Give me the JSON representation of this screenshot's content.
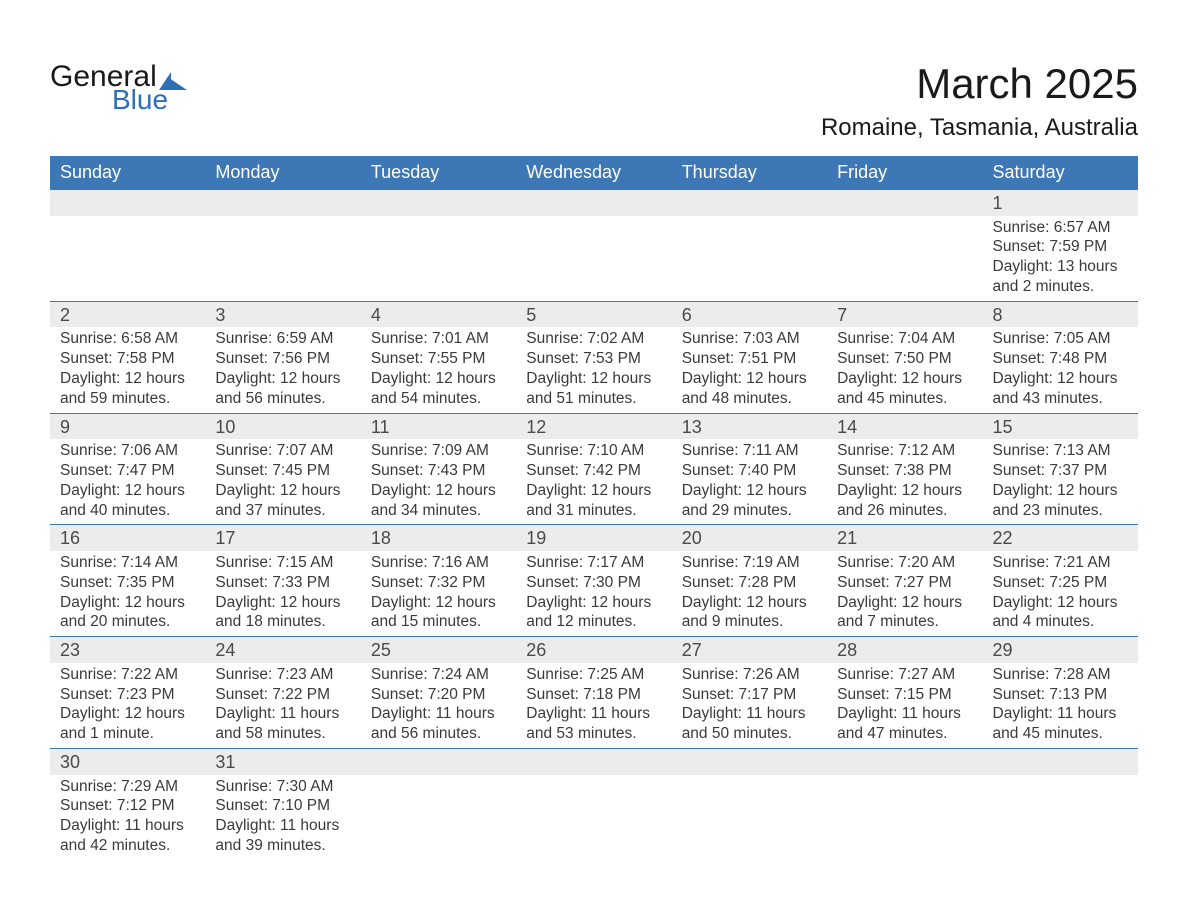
{
  "logo": {
    "general": "General",
    "blue": "Blue"
  },
  "title": {
    "month": "March 2025",
    "location": "Romaine, Tasmania, Australia"
  },
  "colors": {
    "header_bg": "#3d77b6",
    "header_text": "#ffffff",
    "daynum_bg": "#ececec",
    "daynum_border": "#3d77b6",
    "body_text": "#3a3a3a",
    "logo_blue": "#2f6fb3"
  },
  "weekday_labels": [
    "Sunday",
    "Monday",
    "Tuesday",
    "Wednesday",
    "Thursday",
    "Friday",
    "Saturday"
  ],
  "weeks": [
    {
      "nums": [
        "",
        "",
        "",
        "",
        "",
        "",
        "1"
      ],
      "cells": [
        null,
        null,
        null,
        null,
        null,
        null,
        {
          "sunrise": "6:57 AM",
          "sunset": "7:59 PM",
          "daylight": "13 hours and 2 minutes."
        }
      ]
    },
    {
      "nums": [
        "2",
        "3",
        "4",
        "5",
        "6",
        "7",
        "8"
      ],
      "cells": [
        {
          "sunrise": "6:58 AM",
          "sunset": "7:58 PM",
          "daylight": "12 hours and 59 minutes."
        },
        {
          "sunrise": "6:59 AM",
          "sunset": "7:56 PM",
          "daylight": "12 hours and 56 minutes."
        },
        {
          "sunrise": "7:01 AM",
          "sunset": "7:55 PM",
          "daylight": "12 hours and 54 minutes."
        },
        {
          "sunrise": "7:02 AM",
          "sunset": "7:53 PM",
          "daylight": "12 hours and 51 minutes."
        },
        {
          "sunrise": "7:03 AM",
          "sunset": "7:51 PM",
          "daylight": "12 hours and 48 minutes."
        },
        {
          "sunrise": "7:04 AM",
          "sunset": "7:50 PM",
          "daylight": "12 hours and 45 minutes."
        },
        {
          "sunrise": "7:05 AM",
          "sunset": "7:48 PM",
          "daylight": "12 hours and 43 minutes."
        }
      ]
    },
    {
      "nums": [
        "9",
        "10",
        "11",
        "12",
        "13",
        "14",
        "15"
      ],
      "cells": [
        {
          "sunrise": "7:06 AM",
          "sunset": "7:47 PM",
          "daylight": "12 hours and 40 minutes."
        },
        {
          "sunrise": "7:07 AM",
          "sunset": "7:45 PM",
          "daylight": "12 hours and 37 minutes."
        },
        {
          "sunrise": "7:09 AM",
          "sunset": "7:43 PM",
          "daylight": "12 hours and 34 minutes."
        },
        {
          "sunrise": "7:10 AM",
          "sunset": "7:42 PM",
          "daylight": "12 hours and 31 minutes."
        },
        {
          "sunrise": "7:11 AM",
          "sunset": "7:40 PM",
          "daylight": "12 hours and 29 minutes."
        },
        {
          "sunrise": "7:12 AM",
          "sunset": "7:38 PM",
          "daylight": "12 hours and 26 minutes."
        },
        {
          "sunrise": "7:13 AM",
          "sunset": "7:37 PM",
          "daylight": "12 hours and 23 minutes."
        }
      ]
    },
    {
      "nums": [
        "16",
        "17",
        "18",
        "19",
        "20",
        "21",
        "22"
      ],
      "cells": [
        {
          "sunrise": "7:14 AM",
          "sunset": "7:35 PM",
          "daylight": "12 hours and 20 minutes."
        },
        {
          "sunrise": "7:15 AM",
          "sunset": "7:33 PM",
          "daylight": "12 hours and 18 minutes."
        },
        {
          "sunrise": "7:16 AM",
          "sunset": "7:32 PM",
          "daylight": "12 hours and 15 minutes."
        },
        {
          "sunrise": "7:17 AM",
          "sunset": "7:30 PM",
          "daylight": "12 hours and 12 minutes."
        },
        {
          "sunrise": "7:19 AM",
          "sunset": "7:28 PM",
          "daylight": "12 hours and 9 minutes."
        },
        {
          "sunrise": "7:20 AM",
          "sunset": "7:27 PM",
          "daylight": "12 hours and 7 minutes."
        },
        {
          "sunrise": "7:21 AM",
          "sunset": "7:25 PM",
          "daylight": "12 hours and 4 minutes."
        }
      ]
    },
    {
      "nums": [
        "23",
        "24",
        "25",
        "26",
        "27",
        "28",
        "29"
      ],
      "cells": [
        {
          "sunrise": "7:22 AM",
          "sunset": "7:23 PM",
          "daylight": "12 hours and 1 minute."
        },
        {
          "sunrise": "7:23 AM",
          "sunset": "7:22 PM",
          "daylight": "11 hours and 58 minutes."
        },
        {
          "sunrise": "7:24 AM",
          "sunset": "7:20 PM",
          "daylight": "11 hours and 56 minutes."
        },
        {
          "sunrise": "7:25 AM",
          "sunset": "7:18 PM",
          "daylight": "11 hours and 53 minutes."
        },
        {
          "sunrise": "7:26 AM",
          "sunset": "7:17 PM",
          "daylight": "11 hours and 50 minutes."
        },
        {
          "sunrise": "7:27 AM",
          "sunset": "7:15 PM",
          "daylight": "11 hours and 47 minutes."
        },
        {
          "sunrise": "7:28 AM",
          "sunset": "7:13 PM",
          "daylight": "11 hours and 45 minutes."
        }
      ]
    },
    {
      "nums": [
        "30",
        "31",
        "",
        "",
        "",
        "",
        ""
      ],
      "cells": [
        {
          "sunrise": "7:29 AM",
          "sunset": "7:12 PM",
          "daylight": "11 hours and 42 minutes."
        },
        {
          "sunrise": "7:30 AM",
          "sunset": "7:10 PM",
          "daylight": "11 hours and 39 minutes."
        },
        null,
        null,
        null,
        null,
        null
      ]
    }
  ],
  "labels": {
    "sunrise": "Sunrise: ",
    "sunset": "Sunset: ",
    "daylight": "Daylight: "
  }
}
